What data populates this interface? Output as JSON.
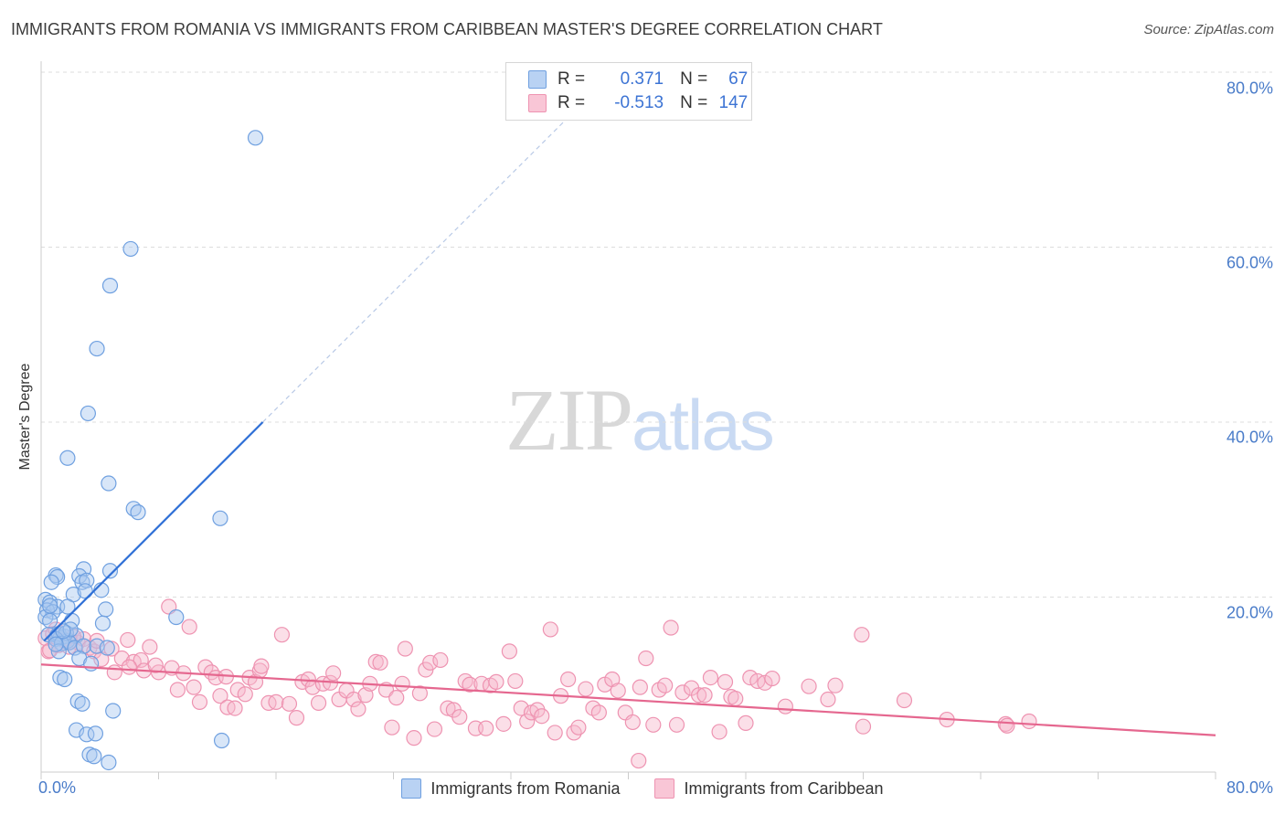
{
  "title": "IMMIGRANTS FROM ROMANIA VS IMMIGRANTS FROM CARIBBEAN MASTER'S DEGREE CORRELATION CHART",
  "source": "Source: ZipAtlas.com",
  "watermark": {
    "zip": "ZIP",
    "atlas": "atlas"
  },
  "legend": {
    "r_label": "R =",
    "n_label": "N =",
    "romania": {
      "r": "0.371",
      "n": "67"
    },
    "caribbean": {
      "r": "-0.513",
      "n": "147"
    }
  },
  "colors": {
    "romania_fill": "#a9c8ef",
    "romania_stroke": "#6fa0e0",
    "romania_line": "#2e6fd6",
    "caribbean_fill": "#f6b9cc",
    "caribbean_stroke": "#ee93b1",
    "caribbean_line": "#e5678f",
    "tick_text": "#4a7cc9",
    "grid": "#dddddd"
  },
  "chart_data": {
    "type": "scatter",
    "title": "IMMIGRANTS FROM ROMANIA VS IMMIGRANTS FROM CARIBBEAN MASTER'S DEGREE CORRELATION CHART",
    "xlabel": "",
    "ylabel": "Master's Degree",
    "xlim": [
      0,
      80
    ],
    "ylim": [
      0,
      80
    ],
    "x_tick_labels": [
      "0.0%",
      "80.0%"
    ],
    "y_ticks": [
      {
        "value": 20,
        "label": "20.0%"
      },
      {
        "value": 40,
        "label": "40.0%"
      },
      {
        "value": 60,
        "label": "60.0%"
      },
      {
        "value": 80,
        "label": "80.0%"
      }
    ],
    "grid": true,
    "legend_position": "bottom",
    "series": [
      {
        "name": "Immigrants from Romania",
        "r": 0.371,
        "n": 67,
        "trend": {
          "x0": 0.2,
          "y0": 15.0,
          "x1": 15.1,
          "y1": 40.0,
          "dashed_to": [
            36.6,
            76.0
          ]
        },
        "points": [
          [
            14.6,
            72.5
          ],
          [
            6.1,
            59.8
          ],
          [
            4.7,
            55.6
          ],
          [
            3.8,
            48.4
          ],
          [
            3.2,
            41.0
          ],
          [
            1.8,
            35.9
          ],
          [
            4.6,
            33.0
          ],
          [
            6.3,
            30.1
          ],
          [
            6.6,
            29.7
          ],
          [
            12.2,
            29.0
          ],
          [
            4.7,
            23.0
          ],
          [
            2.9,
            23.2
          ],
          [
            1.0,
            22.5
          ],
          [
            1.1,
            22.3
          ],
          [
            0.7,
            21.7
          ],
          [
            2.6,
            22.4
          ],
          [
            2.8,
            21.7
          ],
          [
            3.1,
            21.9
          ],
          [
            2.2,
            20.3
          ],
          [
            4.1,
            20.8
          ],
          [
            3.0,
            20.7
          ],
          [
            0.3,
            19.7
          ],
          [
            0.6,
            19.4
          ],
          [
            1.1,
            18.9
          ],
          [
            0.4,
            18.5
          ],
          [
            0.8,
            18.3
          ],
          [
            1.8,
            18.9
          ],
          [
            4.4,
            18.6
          ],
          [
            0.3,
            17.7
          ],
          [
            0.6,
            17.3
          ],
          [
            9.2,
            17.7
          ],
          [
            2.1,
            17.3
          ],
          [
            4.2,
            17.0
          ],
          [
            0.5,
            15.7
          ],
          [
            1.1,
            15.6
          ],
          [
            1.3,
            15.3
          ],
          [
            1.6,
            15.5
          ],
          [
            1.8,
            15.0
          ],
          [
            2.4,
            15.6
          ],
          [
            1.2,
            15.8
          ],
          [
            1.7,
            15.9
          ],
          [
            1.0,
            15.2
          ],
          [
            1.4,
            14.7
          ],
          [
            1.9,
            14.8
          ],
          [
            2.3,
            14.2
          ],
          [
            2.9,
            14.4
          ],
          [
            3.8,
            14.4
          ],
          [
            1.2,
            13.8
          ],
          [
            4.5,
            14.2
          ],
          [
            2.6,
            13.0
          ],
          [
            3.4,
            12.4
          ],
          [
            1.3,
            10.8
          ],
          [
            1.6,
            10.6
          ],
          [
            2.5,
            8.1
          ],
          [
            2.8,
            7.8
          ],
          [
            4.9,
            7.0
          ],
          [
            2.4,
            4.8
          ],
          [
            3.1,
            4.3
          ],
          [
            3.7,
            4.4
          ],
          [
            12.3,
            3.6
          ],
          [
            3.3,
            2.0
          ],
          [
            3.6,
            1.8
          ],
          [
            4.6,
            1.1
          ],
          [
            0.6,
            19.0
          ],
          [
            2.0,
            16.3
          ],
          [
            1.5,
            16.1
          ],
          [
            1.0,
            14.6
          ]
        ]
      },
      {
        "name": "Immigrants from Caribbean",
        "r": -0.513,
        "n": 147,
        "trend": {
          "x0": 0.0,
          "y0": 12.3,
          "x1": 80.0,
          "y1": 4.2
        },
        "points": [
          [
            0.3,
            15.3
          ],
          [
            0.5,
            13.8
          ],
          [
            0.8,
            15.8
          ],
          [
            1.2,
            14.5
          ],
          [
            1.6,
            15.0
          ],
          [
            2.0,
            14.9
          ],
          [
            2.5,
            14.8
          ],
          [
            2.9,
            15.2
          ],
          [
            3.3,
            14.2
          ],
          [
            3.6,
            13.8
          ],
          [
            4.1,
            12.9
          ],
          [
            4.8,
            14.1
          ],
          [
            5.0,
            11.4
          ],
          [
            5.5,
            13.0
          ],
          [
            5.9,
            15.1
          ],
          [
            6.3,
            12.6
          ],
          [
            6.8,
            12.8
          ],
          [
            7.4,
            14.3
          ],
          [
            7.0,
            11.6
          ],
          [
            8.0,
            11.4
          ],
          [
            8.7,
            18.9
          ],
          [
            8.9,
            11.9
          ],
          [
            9.3,
            9.4
          ],
          [
            9.7,
            11.3
          ],
          [
            10.1,
            16.6
          ],
          [
            10.4,
            9.7
          ],
          [
            10.8,
            8.0
          ],
          [
            11.2,
            12.0
          ],
          [
            11.6,
            11.4
          ],
          [
            11.9,
            10.8
          ],
          [
            12.2,
            8.7
          ],
          [
            12.6,
            10.9
          ],
          [
            12.7,
            7.4
          ],
          [
            13.2,
            7.3
          ],
          [
            13.4,
            9.4
          ],
          [
            13.9,
            8.9
          ],
          [
            14.2,
            10.8
          ],
          [
            14.6,
            10.3
          ],
          [
            14.9,
            11.6
          ],
          [
            15.0,
            12.1
          ],
          [
            15.5,
            7.9
          ],
          [
            16.0,
            8.0
          ],
          [
            16.4,
            15.7
          ],
          [
            16.9,
            7.8
          ],
          [
            17.4,
            6.2
          ],
          [
            17.8,
            10.3
          ],
          [
            18.2,
            10.6
          ],
          [
            18.5,
            9.7
          ],
          [
            18.9,
            7.9
          ],
          [
            19.2,
            10.1
          ],
          [
            19.7,
            10.2
          ],
          [
            19.9,
            11.3
          ],
          [
            20.3,
            8.3
          ],
          [
            20.8,
            9.3
          ],
          [
            21.3,
            8.3
          ],
          [
            21.6,
            7.2
          ],
          [
            22.1,
            8.8
          ],
          [
            22.4,
            10.1
          ],
          [
            22.8,
            12.6
          ],
          [
            23.1,
            12.5
          ],
          [
            23.5,
            9.4
          ],
          [
            23.9,
            5.1
          ],
          [
            24.2,
            8.5
          ],
          [
            24.6,
            10.1
          ],
          [
            24.8,
            14.1
          ],
          [
            25.4,
            3.9
          ],
          [
            25.8,
            9.0
          ],
          [
            26.2,
            11.7
          ],
          [
            26.5,
            12.5
          ],
          [
            26.8,
            4.9
          ],
          [
            27.2,
            12.8
          ],
          [
            27.7,
            7.3
          ],
          [
            28.1,
            7.1
          ],
          [
            28.5,
            6.3
          ],
          [
            28.9,
            10.4
          ],
          [
            29.2,
            10.0
          ],
          [
            29.6,
            5.0
          ],
          [
            30.0,
            10.1
          ],
          [
            30.3,
            5.0
          ],
          [
            30.6,
            9.9
          ],
          [
            31.0,
            10.3
          ],
          [
            31.5,
            5.5
          ],
          [
            31.9,
            13.8
          ],
          [
            32.3,
            10.4
          ],
          [
            32.7,
            7.3
          ],
          [
            33.1,
            5.8
          ],
          [
            33.4,
            6.8
          ],
          [
            33.8,
            7.1
          ],
          [
            34.1,
            6.4
          ],
          [
            34.7,
            16.3
          ],
          [
            35.0,
            4.5
          ],
          [
            35.4,
            8.7
          ],
          [
            35.9,
            10.6
          ],
          [
            36.3,
            4.5
          ],
          [
            36.6,
            5.1
          ],
          [
            37.1,
            9.5
          ],
          [
            37.6,
            7.3
          ],
          [
            38.0,
            6.8
          ],
          [
            38.4,
            10.0
          ],
          [
            38.9,
            10.6
          ],
          [
            39.3,
            9.3
          ],
          [
            39.8,
            6.8
          ],
          [
            40.3,
            5.7
          ],
          [
            40.8,
            9.7
          ],
          [
            41.2,
            13.0
          ],
          [
            41.7,
            5.4
          ],
          [
            42.1,
            9.4
          ],
          [
            42.5,
            9.9
          ],
          [
            42.9,
            16.5
          ],
          [
            43.3,
            5.4
          ],
          [
            43.7,
            9.1
          ],
          [
            44.3,
            9.6
          ],
          [
            44.8,
            8.8
          ],
          [
            45.2,
            8.8
          ],
          [
            45.6,
            10.8
          ],
          [
            46.2,
            4.6
          ],
          [
            46.6,
            10.3
          ],
          [
            47.0,
            8.6
          ],
          [
            47.3,
            8.4
          ],
          [
            48.0,
            5.6
          ],
          [
            48.3,
            10.8
          ],
          [
            48.8,
            10.4
          ],
          [
            49.3,
            10.2
          ],
          [
            49.8,
            10.7
          ],
          [
            50.7,
            7.5
          ],
          [
            52.3,
            9.8
          ],
          [
            53.6,
            8.3
          ],
          [
            54.1,
            9.9
          ],
          [
            55.9,
            15.7
          ],
          [
            56.0,
            5.2
          ],
          [
            58.8,
            8.2
          ],
          [
            61.7,
            6.0
          ],
          [
            65.7,
            5.5
          ],
          [
            67.3,
            5.8
          ],
          [
            65.8,
            5.3
          ],
          [
            40.7,
            1.3
          ],
          [
            2.2,
            15.5
          ],
          [
            1.0,
            16.3
          ],
          [
            0.6,
            13.9
          ],
          [
            1.9,
            14.3
          ],
          [
            3.8,
            15.0
          ],
          [
            6.0,
            12.0
          ],
          [
            7.8,
            12.2
          ]
        ]
      }
    ]
  },
  "bottom_legend": {
    "romania": "Immigrants from Romania",
    "caribbean": "Immigrants from Caribbean"
  }
}
